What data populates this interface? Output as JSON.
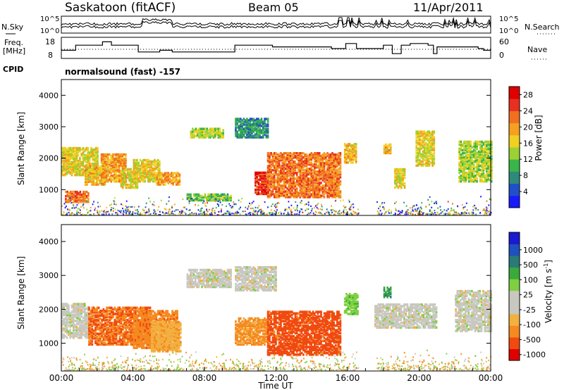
{
  "header": {
    "radar": "Saskatoon (fitACF)",
    "beam": "Beam 05",
    "date": "11/Apr/2011"
  },
  "side_labels": {
    "nsky": "N.Sky",
    "freq_line1": "Freq.",
    "freq_line2": "[MHz]",
    "cpid": "CPID",
    "nsearch": "N.Search",
    "nave": "Nave",
    "program": "normalsound (fast) -157"
  },
  "chart_data": [
    {
      "type": "line",
      "panel": "noise",
      "series": [
        {
          "name": "N.Sky"
        },
        {
          "name": "N.Search"
        }
      ],
      "left_ticks": [
        "10^5",
        "10^0"
      ],
      "right_ticks": [
        "10^5",
        "10^0"
      ]
    },
    {
      "type": "line",
      "panel": "frequency",
      "series": [
        {
          "name": "Freq. [MHz]",
          "x": [
            0,
            0.8,
            2.3,
            2.8,
            4.3,
            5.5,
            6.2,
            9.7,
            11.8,
            15.1,
            15.9,
            16.5,
            18.0,
            18.5,
            19.0,
            19.5,
            20.5,
            20.8,
            21.0,
            23.3,
            23.6,
            24.0
          ],
          "y": [
            12,
            15,
            17,
            15,
            11,
            12,
            11,
            15,
            14,
            13,
            16,
            13,
            15,
            10,
            15,
            16,
            15,
            10,
            14,
            13,
            12,
            13
          ]
        },
        {
          "name": "Nave",
          "dotted": true,
          "x": [
            0,
            24
          ],
          "y": [
            18,
            18
          ]
        }
      ],
      "left_ticks": [
        "18",
        "8"
      ],
      "right_ticks": [
        "60",
        "0"
      ]
    },
    {
      "type": "heatmap",
      "panel": "power",
      "xlabel": "",
      "ylabel": "Slant Range [km]",
      "xlim": [
        0,
        24
      ],
      "ylim": [
        180,
        4500
      ],
      "yticks": [
        "1000",
        "2000",
        "3000",
        "4000"
      ],
      "colorbar": {
        "label": "Power [dB]",
        "ticks": [
          "4",
          "8",
          "12",
          "16",
          "20",
          "24",
          "28"
        ],
        "range": [
          0,
          30
        ]
      },
      "blobs": [
        {
          "t0": 0.0,
          "t1": 2.0,
          "r0": 1500,
          "r1": 2400,
          "v": 16
        },
        {
          "t0": 0.2,
          "t1": 1.5,
          "r0": 650,
          "r1": 1000,
          "v": 22
        },
        {
          "t0": 1.3,
          "t1": 2.5,
          "r0": 1200,
          "r1": 1800,
          "v": 18
        },
        {
          "t0": 2.2,
          "t1": 3.6,
          "r0": 1300,
          "r1": 2200,
          "v": 20
        },
        {
          "t0": 3.3,
          "t1": 4.2,
          "r0": 1100,
          "r1": 1700,
          "v": 16
        },
        {
          "t0": 4.0,
          "t1": 5.5,
          "r0": 1300,
          "r1": 2000,
          "v": 17
        },
        {
          "t0": 5.3,
          "t1": 6.6,
          "r0": 1200,
          "r1": 1600,
          "v": 20
        },
        {
          "t0": 7.2,
          "t1": 9.0,
          "r0": 2700,
          "r1": 3000,
          "v": 14
        },
        {
          "t0": 7.0,
          "t1": 9.5,
          "r0": 700,
          "r1": 900,
          "v": 12
        },
        {
          "t0": 9.7,
          "t1": 11.5,
          "r0": 2700,
          "r1": 3300,
          "v": 8
        },
        {
          "t0": 10.8,
          "t1": 11.6,
          "r0": 900,
          "r1": 1600,
          "v": 26
        },
        {
          "t0": 11.5,
          "t1": 15.6,
          "r0": 800,
          "r1": 2200,
          "v": 22
        },
        {
          "t0": 15.8,
          "t1": 16.5,
          "r0": 1900,
          "r1": 2500,
          "v": 18
        },
        {
          "t0": 18.0,
          "t1": 18.4,
          "r0": 2200,
          "r1": 2500,
          "v": 18
        },
        {
          "t0": 18.6,
          "t1": 19.2,
          "r0": 1100,
          "r1": 1700,
          "v": 16
        },
        {
          "t0": 19.8,
          "t1": 20.8,
          "r0": 1800,
          "r1": 2900,
          "v": 16
        },
        {
          "t0": 22.2,
          "t1": 24.0,
          "r0": 1300,
          "r1": 2600,
          "v": 14
        }
      ]
    },
    {
      "type": "heatmap",
      "panel": "velocity",
      "xlabel": "Time UT",
      "ylabel": "Slant Range [km]",
      "xlim": [
        0,
        24
      ],
      "ylim": [
        180,
        4500
      ],
      "xticks": [
        "00:00",
        "04:00",
        "08:00",
        "12:00",
        "16:00",
        "20:00",
        "00:00"
      ],
      "yticks": [
        "1000",
        "2000",
        "3000",
        "4000"
      ],
      "colorbar": {
        "label": "Velocity [m s-1]",
        "ticks": [
          "1000",
          "500",
          "100",
          "25",
          "-25",
          "-100",
          "-500",
          "-1000"
        ]
      },
      "blobs": [
        {
          "t0": 0.0,
          "t1": 1.5,
          "r0": 1200,
          "r1": 2200,
          "v": 0
        },
        {
          "t0": 1.5,
          "t1": 5.0,
          "r0": 1000,
          "r1": 2100,
          "v": -200
        },
        {
          "t0": 4.0,
          "t1": 6.5,
          "r0": 900,
          "r1": 2000,
          "v": -150
        },
        {
          "t0": 5.0,
          "t1": 6.7,
          "r0": 800,
          "r1": 1700,
          "v": -60
        },
        {
          "t0": 7.0,
          "t1": 9.5,
          "r0": 2700,
          "r1": 3200,
          "v": 0
        },
        {
          "t0": 9.7,
          "t1": 11.5,
          "r0": 1000,
          "r1": 1800,
          "v": -100
        },
        {
          "t0": 9.7,
          "t1": 12.0,
          "r0": 2600,
          "r1": 3300,
          "v": 0
        },
        {
          "t0": 11.5,
          "t1": 15.6,
          "r0": 700,
          "r1": 2000,
          "v": -300
        },
        {
          "t0": 15.8,
          "t1": 16.6,
          "r0": 1900,
          "r1": 2500,
          "v": 80
        },
        {
          "t0": 18.0,
          "t1": 18.4,
          "r0": 2400,
          "r1": 2700,
          "v": 300
        },
        {
          "t0": 17.5,
          "t1": 21.0,
          "r0": 1500,
          "r1": 2200,
          "v": 0
        },
        {
          "t0": 22.0,
          "t1": 24.0,
          "r0": 1400,
          "r1": 2600,
          "v": 0
        }
      ]
    }
  ],
  "colors": {
    "power_scale": [
      "#1a1aff",
      "#2050c8",
      "#2e8a7a",
      "#39b54a",
      "#9ad233",
      "#f0d020",
      "#f5a020",
      "#f07020",
      "#e83020",
      "#e00000"
    ],
    "velocity_scale": [
      "#e00000",
      "#f04a10",
      "#f58a20",
      "#f2b040",
      "#c8c8c0",
      "#c8c8c0",
      "#7ed040",
      "#3aaa3a",
      "#2a7a78",
      "#2050c0",
      "#1a1ad0"
    ]
  }
}
